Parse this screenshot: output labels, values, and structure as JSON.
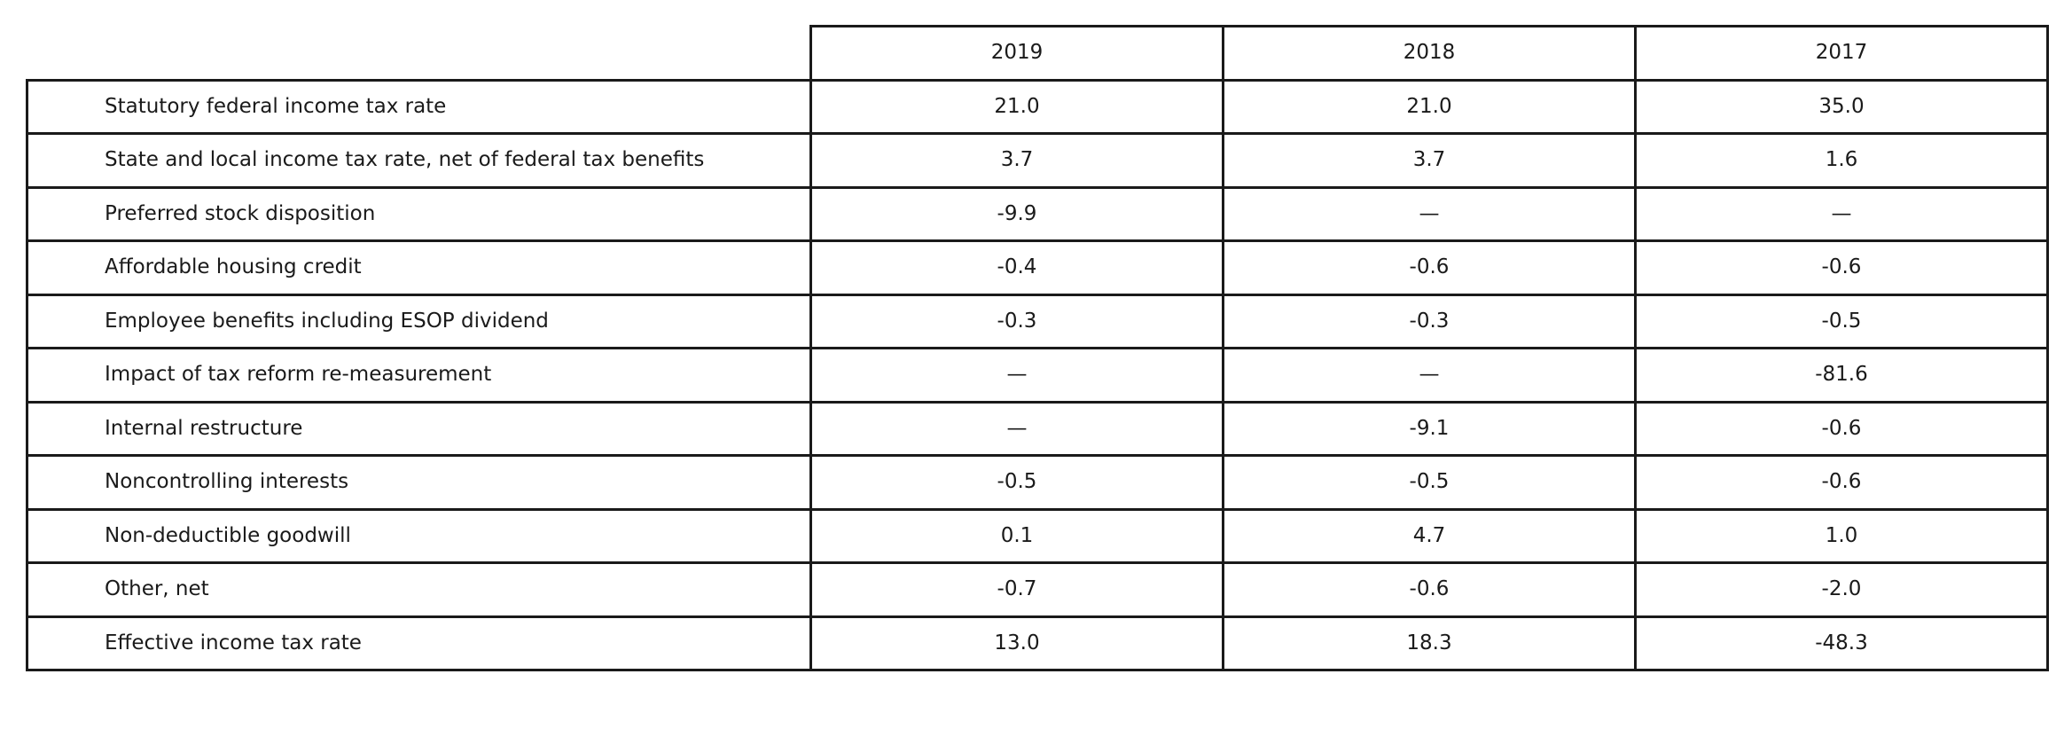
{
  "table": {
    "columns": [
      "2019",
      "2018",
      "2017"
    ],
    "rows": [
      {
        "label": "Statutory federal income tax rate",
        "values": [
          "21.0",
          "21.0",
          "35.0"
        ]
      },
      {
        "label": "State and local income tax rate, net of federal tax benefits",
        "values": [
          "3.7",
          "3.7",
          "1.6"
        ]
      },
      {
        "label": "Preferred stock disposition",
        "values": [
          "-9.9",
          "—",
          "—"
        ]
      },
      {
        "label": "Affordable housing credit",
        "values": [
          "-0.4",
          "-0.6",
          "-0.6"
        ]
      },
      {
        "label": "Employee benefits including ESOP dividend",
        "values": [
          "-0.3",
          "-0.3",
          "-0.5"
        ]
      },
      {
        "label": "Impact of tax reform re-measurement",
        "values": [
          "—",
          "—",
          "-81.6"
        ]
      },
      {
        "label": "Internal restructure",
        "values": [
          "—",
          "-9.1",
          "-0.6"
        ]
      },
      {
        "label": "Noncontrolling interests",
        "values": [
          "-0.5",
          "-0.5",
          "-0.6"
        ]
      },
      {
        "label": "Non-deductible goodwill",
        "values": [
          "0.1",
          "4.7",
          "1.0"
        ]
      },
      {
        "label": "Other, net",
        "values": [
          "-0.7",
          "-0.6",
          "-2.0"
        ]
      },
      {
        "label": "Effective income tax rate",
        "values": [
          "13.0",
          "18.3",
          "-48.3"
        ]
      }
    ]
  }
}
